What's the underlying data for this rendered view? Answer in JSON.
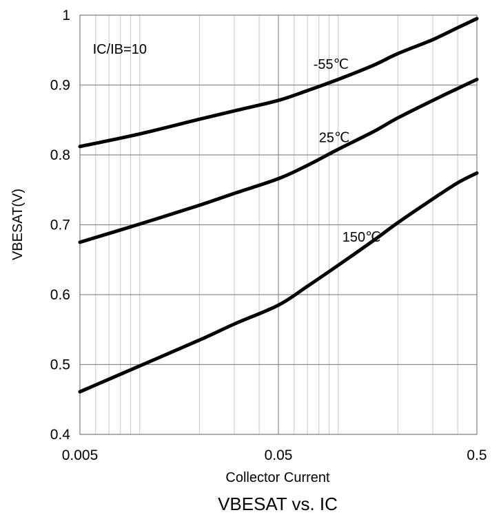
{
  "chart_data": {
    "type": "line",
    "title": "VBESAT vs. IC",
    "xlabel": "Collector Current",
    "ylabel": "VBESAT(V)",
    "x_scale": "log",
    "xlim": [
      0.005,
      0.5
    ],
    "ylim": [
      0.4,
      1.0
    ],
    "x_ticks": [
      {
        "value": 0.005,
        "label": "0.005"
      },
      {
        "value": 0.05,
        "label": "0.05"
      },
      {
        "value": 0.5,
        "label": "0.5"
      }
    ],
    "y_ticks": [
      {
        "value": 0.4,
        "label": "0.4"
      },
      {
        "value": 0.5,
        "label": "0.5"
      },
      {
        "value": 0.6,
        "label": "0.6"
      },
      {
        "value": 0.7,
        "label": "0.7"
      },
      {
        "value": 0.8,
        "label": "0.8"
      },
      {
        "value": 0.9,
        "label": "0.9"
      },
      {
        "value": 1.0,
        "label": "1"
      }
    ],
    "grid": true,
    "annotations": [
      {
        "text": "IC/IB=10",
        "x": 0.0058,
        "y": 0.945
      },
      {
        "text": "-55℃",
        "x": 0.075,
        "y": 0.923
      },
      {
        "text": "25℃",
        "x": 0.08,
        "y": 0.818
      },
      {
        "text": "150℃",
        "x": 0.105,
        "y": 0.676
      }
    ],
    "series": [
      {
        "name": "-55℃",
        "x": [
          0.005,
          0.01,
          0.02,
          0.03,
          0.05,
          0.07,
          0.1,
          0.15,
          0.2,
          0.3,
          0.4,
          0.5
        ],
        "y": [
          0.812,
          0.83,
          0.851,
          0.863,
          0.878,
          0.892,
          0.908,
          0.928,
          0.945,
          0.965,
          0.982,
          0.995
        ]
      },
      {
        "name": "25℃",
        "x": [
          0.005,
          0.01,
          0.02,
          0.03,
          0.05,
          0.07,
          0.1,
          0.15,
          0.2,
          0.3,
          0.4,
          0.5
        ],
        "y": [
          0.675,
          0.701,
          0.728,
          0.745,
          0.766,
          0.785,
          0.808,
          0.833,
          0.853,
          0.878,
          0.895,
          0.908
        ]
      },
      {
        "name": "150℃",
        "x": [
          0.005,
          0.01,
          0.02,
          0.03,
          0.05,
          0.07,
          0.1,
          0.15,
          0.2,
          0.3,
          0.4,
          0.5
        ],
        "y": [
          0.461,
          0.498,
          0.535,
          0.558,
          0.585,
          0.612,
          0.642,
          0.677,
          0.703,
          0.737,
          0.76,
          0.774
        ]
      }
    ]
  }
}
